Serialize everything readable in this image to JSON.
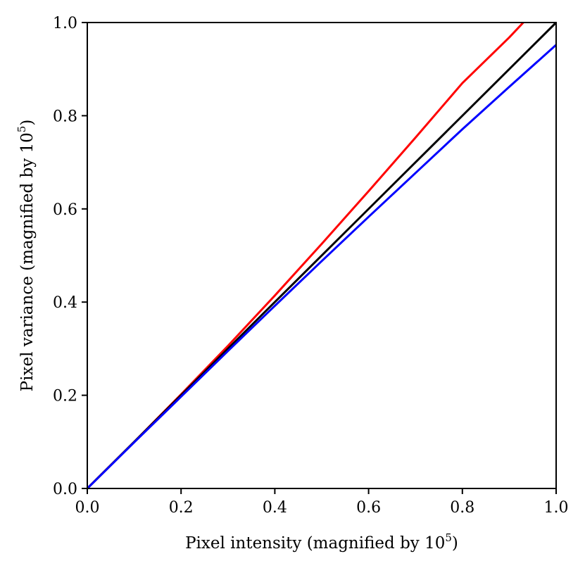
{
  "chart_data": {
    "type": "line",
    "xlabel": {
      "prefix": "Pixel intensity (magnified by 10",
      "sup": "5",
      "suffix": ")"
    },
    "ylabel": {
      "prefix": "Pixel variance (magnified by 10",
      "sup": "5",
      "suffix": ")"
    },
    "xlim": [
      0.0,
      1.0
    ],
    "ylim": [
      0.0,
      1.0
    ],
    "xticks": [
      "0.0",
      "0.2",
      "0.4",
      "0.6",
      "0.8",
      "1.0"
    ],
    "yticks": [
      "0.0",
      "0.2",
      "0.4",
      "0.6",
      "0.8",
      "1.0"
    ],
    "grid": false,
    "legend": "none",
    "series": [
      {
        "color": "#ff0000",
        "x": [
          0.0,
          0.1,
          0.2,
          0.3,
          0.4,
          0.5,
          0.6,
          0.7,
          0.8,
          0.9,
          0.93
        ],
        "y": [
          0.0,
          0.1,
          0.202,
          0.306,
          0.414,
          0.525,
          0.638,
          0.753,
          0.87,
          0.968,
          1.0
        ]
      },
      {
        "color": "#000000",
        "x": [
          0.0,
          1.0
        ],
        "y": [
          0.0,
          1.0
        ]
      },
      {
        "color": "#0000ff",
        "x": [
          0.0,
          0.1,
          0.2,
          0.3,
          0.4,
          0.5,
          0.6,
          0.7,
          0.8,
          0.9,
          1.0
        ],
        "y": [
          0.0,
          0.099,
          0.197,
          0.295,
          0.392,
          0.488,
          0.583,
          0.677,
          0.771,
          0.862,
          0.952
        ]
      }
    ]
  }
}
